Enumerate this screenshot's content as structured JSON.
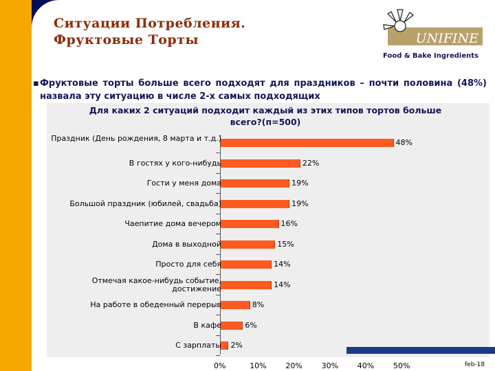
{
  "title_line1": "Ситуации Потребления.",
  "title_line2": "Фруктовые Торты",
  "logo": {
    "brand": "UNIFINE",
    "tagline": "Food & Bake Ingredients"
  },
  "bullet": {
    "mark": "▪",
    "text": "Фруктовые торты больше всего подходят для праздников – почти половина (48%) назвала эту ситуацию в числе 2-х самых подходящих"
  },
  "page_number": "feb-18",
  "colors": {
    "bar": "#ff5a1f",
    "title": "#8c2b06",
    "side_bar": "#f5a800",
    "background": "#000d5a"
  },
  "chart_data": {
    "type": "bar",
    "orientation": "horizontal",
    "title": "Для каких 2 ситуаций подходит каждый из этих типов тортов больше всего?(п=500)",
    "categories": [
      "Праздник (День рождения, 8 марта и т.д.)",
      "В гостях у кого-нибудь",
      "Гости у меня дома",
      "Большой праздник (юбилей, свадьба)",
      "Чаепитие дома вечером",
      "Дома в выходной",
      "Просто для себя",
      "Отмечая какое-нибудь событие, достижение",
      "На работе в обеденный перерыв",
      "В кафе",
      "С зарплаты"
    ],
    "values": [
      48,
      22,
      19,
      19,
      16,
      15,
      14,
      14,
      8,
      6,
      2
    ],
    "value_labels": [
      "48%",
      "22%",
      "19%",
      "19%",
      "16%",
      "15%",
      "14%",
      "14%",
      "8%",
      "6%",
      "2%"
    ],
    "x_ticks": [
      "0%",
      "10%",
      "20%",
      "30%",
      "40%",
      "50%"
    ],
    "xlim": [
      0,
      50
    ],
    "grid": false,
    "legend": "none"
  }
}
